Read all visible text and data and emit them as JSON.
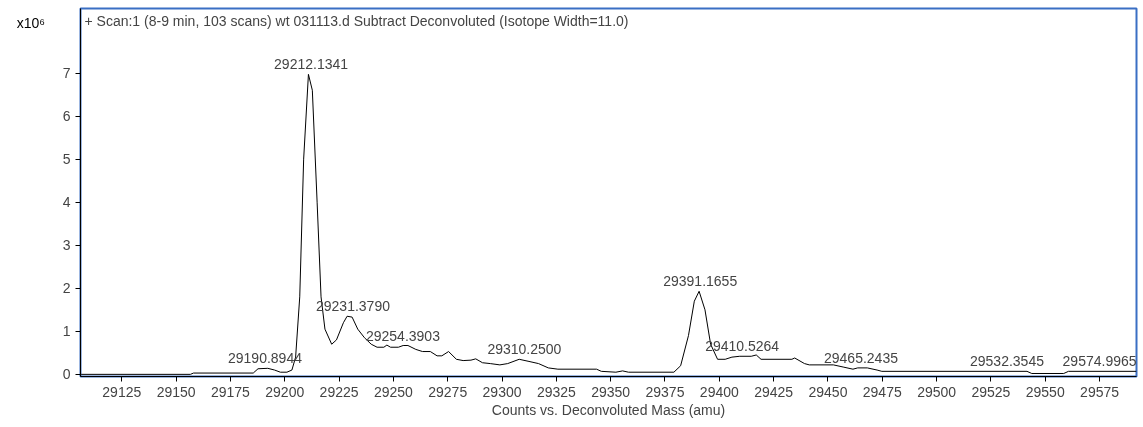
{
  "chart_data": {
    "type": "line",
    "title": "+ Scan:1 (8-9 min, 103 scans) wt 031113.d  Subtract Deconvoluted (Isotope Width=11.0)",
    "xlabel": "Counts vs. Deconvoluted Mass (amu)",
    "ylabel": "x10⁶",
    "xlim": [
      29106,
      29592
    ],
    "ylim": [
      -0.05,
      8.5
    ],
    "xticks": [
      29125,
      29150,
      29175,
      29200,
      29225,
      29250,
      29275,
      29300,
      29325,
      29350,
      29375,
      29400,
      29425,
      29450,
      29475,
      29500,
      29525,
      29550,
      29575
    ],
    "yticks": [
      0,
      1,
      2,
      3,
      4,
      5,
      6,
      7
    ],
    "grid": false,
    "marker": "none",
    "line_style": "solid",
    "series": [
      {
        "color": "#000000",
        "x": [
          29106.3,
          29156.6,
          29158,
          29185.5,
          29187.7,
          29192.2,
          29195.3,
          29198,
          29201,
          29203.3,
          29205,
          29206.9,
          29208.7,
          29210.9,
          29212.7,
          29214.9,
          29216.7,
          29218.5,
          29221.6,
          29223.8,
          29227,
          29228.7,
          29231,
          29233.6,
          29236.7,
          29239.8,
          29242.5,
          29245.6,
          29247,
          29248.7,
          29252.3,
          29254.5,
          29256.7,
          29260.3,
          29263.4,
          29267,
          29270.1,
          29272.3,
          29275.4,
          29279,
          29282.1,
          29285.7,
          29287.9,
          29291,
          29294.6,
          29299,
          29302.6,
          29307.9,
          29312.4,
          29316.8,
          29321.3,
          29325.7,
          29343.5,
          29345.7,
          29352.4,
          29355.5,
          29358.2,
          29379.1,
          29382.2,
          29385.8,
          29388.5,
          29390.7,
          29393.4,
          29396,
          29399.2,
          29402.7,
          29405.8,
          29409.4,
          29414.7,
          29417,
          29419.2,
          29433.4,
          29434.7,
          29439.2,
          29441.4,
          29452.5,
          29457,
          29461.5,
          29463.7,
          29468.1,
          29472.6,
          29474.8,
          29541.6,
          29543.8,
          29558.5,
          29560.7,
          29592
        ],
        "values": [
          0,
          0,
          0.03,
          0.03,
          0.13,
          0.14,
          0.1,
          0.05,
          0.05,
          0.1,
          0.4,
          1.8,
          5.0,
          6.97,
          6.6,
          4.0,
          1.8,
          1.05,
          0.7,
          0.8,
          1.2,
          1.35,
          1.33,
          1.05,
          0.85,
          0.7,
          0.63,
          0.63,
          0.68,
          0.63,
          0.63,
          0.67,
          0.67,
          0.58,
          0.53,
          0.53,
          0.43,
          0.43,
          0.53,
          0.35,
          0.32,
          0.33,
          0.36,
          0.27,
          0.25,
          0.22,
          0.25,
          0.35,
          0.3,
          0.25,
          0.15,
          0.12,
          0.12,
          0.07,
          0.05,
          0.08,
          0.05,
          0.05,
          0.2,
          0.9,
          1.7,
          1.93,
          1.5,
          0.7,
          0.35,
          0.35,
          0.4,
          0.42,
          0.42,
          0.45,
          0.35,
          0.35,
          0.38,
          0.25,
          0.22,
          0.22,
          0.17,
          0.12,
          0.15,
          0.15,
          0.1,
          0.07,
          0.07,
          0.02,
          0.02,
          0.07,
          0.07
        ]
      }
    ],
    "annotations": [
      {
        "text": "29190.8944",
        "x": 29190.9,
        "y": 0.14
      },
      {
        "text": "29212.1341",
        "x": 29212.1,
        "y": 6.97
      },
      {
        "text": "29231.3790",
        "x": 29231.4,
        "y": 1.35
      },
      {
        "text": "29254.3903",
        "x": 29254.4,
        "y": 0.67
      },
      {
        "text": "29310.2500",
        "x": 29310.3,
        "y": 0.35
      },
      {
        "text": "29391.1655",
        "x": 29391.2,
        "y": 1.93
      },
      {
        "text": "29410.5264",
        "x": 29410.5,
        "y": 0.42
      },
      {
        "text": "29465.2435",
        "x": 29465.2,
        "y": 0.15
      },
      {
        "text": "29532.3545",
        "x": 29532.4,
        "y": 0.07
      },
      {
        "text": "29574.9965",
        "x": 29575.0,
        "y": 0.07
      }
    ]
  }
}
